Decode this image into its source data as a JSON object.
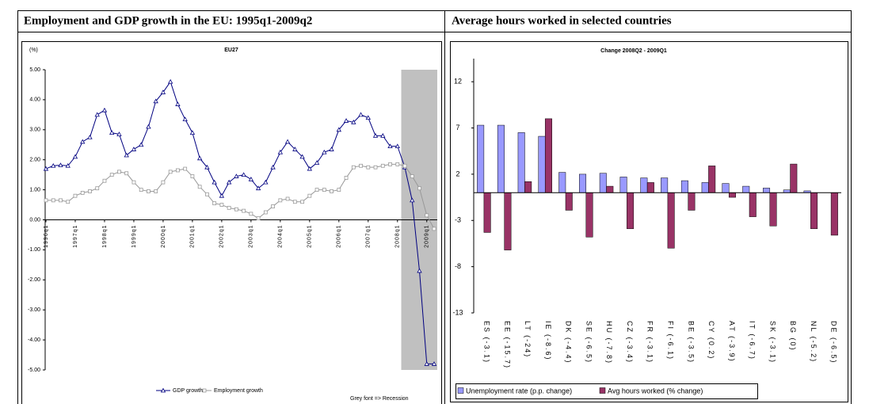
{
  "chart_data": [
    {
      "type": "line",
      "panel_title": "Employment and GDP growth in the EU: 1995q1-2009q2",
      "title": "EU27",
      "y_label": "(%)",
      "categories": [
        "1996q1",
        null,
        null,
        null,
        "1997q1",
        null,
        null,
        null,
        "1998q1",
        null,
        null,
        null,
        "1999q1",
        null,
        null,
        null,
        "2000q1",
        null,
        null,
        null,
        "2001q1",
        null,
        null,
        null,
        "2002q1",
        null,
        null,
        null,
        "2003q1",
        null,
        null,
        null,
        "2004q1",
        null,
        null,
        null,
        "2005q1",
        null,
        null,
        null,
        "2006q1",
        null,
        null,
        null,
        "2007q1",
        null,
        null,
        null,
        "2008q1",
        null,
        null,
        null,
        "2009q1",
        null
      ],
      "series": [
        {
          "name": "GDP growth",
          "color": "#000080",
          "values": [
            1.7,
            1.8,
            1.82,
            1.8,
            2.1,
            2.6,
            2.75,
            3.5,
            3.65,
            2.9,
            2.85,
            2.15,
            2.35,
            2.5,
            3.1,
            3.95,
            4.25,
            4.6,
            3.85,
            3.35,
            2.9,
            2.05,
            1.75,
            1.25,
            0.8,
            1.25,
            1.45,
            1.5,
            1.35,
            1.05,
            1.25,
            1.75,
            2.25,
            2.6,
            2.35,
            2.1,
            1.7,
            1.9,
            2.25,
            2.35,
            3.0,
            3.3,
            3.25,
            3.5,
            3.4,
            2.8,
            2.8,
            2.45,
            2.45,
            1.75,
            0.65,
            -1.7,
            -4.8,
            -4.8
          ]
        },
        {
          "name": "Employment growth",
          "color": "#999999",
          "values": [
            0.65,
            0.65,
            0.65,
            0.6,
            0.8,
            0.9,
            0.95,
            1.05,
            1.3,
            1.5,
            1.6,
            1.55,
            1.25,
            1.0,
            0.95,
            0.95,
            1.25,
            1.6,
            1.65,
            1.7,
            1.45,
            1.1,
            0.85,
            0.55,
            0.5,
            0.4,
            0.35,
            0.3,
            0.2,
            0.05,
            0.25,
            0.45,
            0.65,
            0.7,
            0.6,
            0.6,
            0.8,
            1.0,
            1.0,
            0.95,
            1.0,
            1.4,
            1.75,
            1.8,
            1.75,
            1.75,
            1.8,
            1.85,
            1.85,
            1.8,
            1.45,
            1.05,
            0.15,
            -0.3
          ]
        }
      ],
      "recession": [
        49,
        53
      ],
      "note": "Grey font => Recession",
      "ylim": [
        -5,
        5
      ],
      "yticks": [
        {
          "value": -5,
          "label": "-5.00"
        },
        {
          "value": -4,
          "label": "-4.00"
        },
        {
          "value": -3,
          "label": "-3.00"
        },
        {
          "value": -2,
          "label": "-2.00"
        },
        {
          "value": -1,
          "label": "-1.00"
        },
        {
          "value": 0,
          "label": "0.00"
        },
        {
          "value": 1,
          "label": "1.00"
        },
        {
          "value": 2,
          "label": "2.00"
        },
        {
          "value": 3,
          "label": "3.00"
        },
        {
          "value": 4,
          "label": "4.00"
        },
        {
          "value": 5,
          "label": "5.00"
        }
      ]
    },
    {
      "type": "bar",
      "panel_title": "Average hours worked in selected countries",
      "title": "Change 2008Q2 - 2009Q1",
      "categories": [
        "ES (-3.1)",
        "EE (-15.7)",
        "LT (-24)",
        "IE (-8.6)",
        "DK (-4.4)",
        "SE (-6.5)",
        "HU (-7.8)",
        "CZ (-3.4)",
        "FR (-3.1)",
        "FI (-6.1)",
        "BE (-3.5)",
        "CY (0.2)",
        "AT (-3.9)",
        "IT (-6.7)",
        "SK (-3.1)",
        "BG (0)",
        "NL (-5.2)",
        "DE (-6.5)"
      ],
      "series": [
        {
          "name": "Unemployment rate (p.p. change)",
          "color": "#9999ff",
          "values": [
            7.3,
            7.3,
            6.5,
            6.1,
            2.2,
            2.0,
            2.1,
            1.7,
            1.6,
            1.6,
            1.3,
            1.1,
            1.0,
            0.7,
            0.5,
            0.3,
            0.2,
            0
          ]
        },
        {
          "name": "Avg hours worked (% change)",
          "color": "#993366",
          "values": [
            -4.3,
            -6.2,
            1.2,
            8.0,
            -1.9,
            -4.8,
            0.7,
            -3.9,
            1.1,
            -6.0,
            -1.9,
            2.9,
            -0.5,
            -2.6,
            -3.6,
            3.1,
            -3.9,
            -4.6
          ]
        }
      ],
      "ylim": [
        -13,
        14.5
      ],
      "yticks": [
        -13,
        -8,
        -3,
        2,
        7,
        12
      ]
    }
  ]
}
